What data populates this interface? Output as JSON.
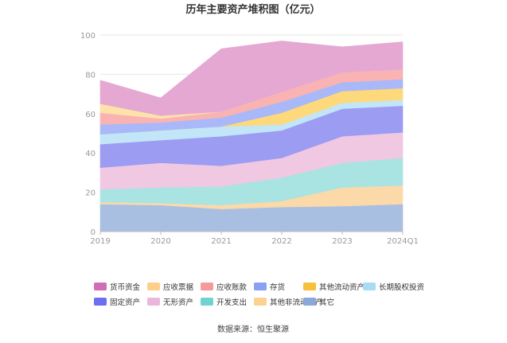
{
  "chart_data": {
    "type": "area",
    "stacked": true,
    "title": "历年主要资产堆积图（亿元）",
    "source": "数据来源：恒生聚源",
    "x": [
      "2019",
      "2020",
      "2021",
      "2022",
      "2023",
      "2024Q1"
    ],
    "ylim": [
      0,
      100
    ],
    "yticks": [
      0,
      20,
      40,
      60,
      80,
      100
    ],
    "grid": true,
    "legend_position": "bottom",
    "series": [
      {
        "name": "其它",
        "color": "#a9bfe2",
        "values": [
          14,
          13.5,
          11.5,
          12.5,
          13,
          14
        ]
      },
      {
        "name": "其他非流动资产",
        "color": "#fbd9a8",
        "values": [
          1,
          1,
          2,
          3,
          9.5,
          9.5
        ]
      },
      {
        "name": "开发支出",
        "color": "#a9e3e2",
        "values": [
          6.5,
          8,
          9.5,
          12,
          12.5,
          14
        ]
      },
      {
        "name": "无形资产",
        "color": "#f0c8e2",
        "values": [
          11,
          12.5,
          10.5,
          10,
          13.5,
          13
        ]
      },
      {
        "name": "固定资产",
        "color": "#9d9cf3",
        "values": [
          12,
          11.5,
          15,
          14,
          14,
          13.5
        ]
      },
      {
        "name": "长期股权投资",
        "color": "#c2e5f7",
        "values": [
          5,
          5,
          5,
          3,
          3,
          3
        ]
      },
      {
        "name": "其他流动资产",
        "color": "#fdd97b",
        "values": [
          0,
          0,
          0,
          6,
          6,
          6
        ]
      },
      {
        "name": "存货",
        "color": "#a9b8f8",
        "values": [
          5,
          4,
          4.5,
          5.5,
          4.5,
          4.5
        ]
      },
      {
        "name": "应收账款",
        "color": "#f9b3b3",
        "values": [
          6,
          2,
          3,
          5,
          5,
          5
        ]
      },
      {
        "name": "应收票据",
        "color": "#fde3a8",
        "values": [
          4.5,
          1.5,
          0,
          0,
          0,
          0
        ]
      },
      {
        "name": "货币资金",
        "color": "#e5a8d3",
        "values": [
          12,
          9,
          32,
          26,
          13,
          14
        ]
      }
    ],
    "legend_order": [
      "货币资金",
      "应收票据",
      "应收账款",
      "存货",
      "其他流动资产",
      "长期股权投资",
      "固定资产",
      "无形资产",
      "开发支出",
      "其他非流动资产",
      "其它"
    ],
    "legend_swatch_colors": {
      "货币资金": "#cf6fb8",
      "应收票据": "#fcd08a",
      "应收账款": "#f49a9a",
      "存货": "#8aa0f3",
      "其他流动资产": "#f7bf3a",
      "长期股权投资": "#a8dcf3",
      "固定资产": "#6e6ef0",
      "无形资产": "#ebb6dc",
      "开发支出": "#72d2d0",
      "其他非流动资产": "#fbd292",
      "其它": "#8aa8db"
    }
  }
}
